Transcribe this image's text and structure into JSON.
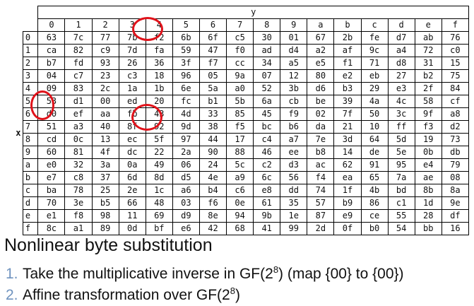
{
  "table": {
    "col_axis_label": "y",
    "row_axis_label": "x",
    "col_headers": [
      "0",
      "1",
      "2",
      "3",
      "4",
      "5",
      "6",
      "7",
      "8",
      "9",
      "a",
      "b",
      "c",
      "d",
      "e",
      "f"
    ],
    "rows": [
      {
        "label": "0",
        "cells": [
          "63",
          "7c",
          "77",
          "7b",
          "f2",
          "6b",
          "6f",
          "c5",
          "30",
          "01",
          "67",
          "2b",
          "fe",
          "d7",
          "ab",
          "76"
        ]
      },
      {
        "label": "1",
        "cells": [
          "ca",
          "82",
          "c9",
          "7d",
          "fa",
          "59",
          "47",
          "f0",
          "ad",
          "d4",
          "a2",
          "af",
          "9c",
          "a4",
          "72",
          "c0"
        ]
      },
      {
        "label": "2",
        "cells": [
          "b7",
          "fd",
          "93",
          "26",
          "36",
          "3f",
          "f7",
          "cc",
          "34",
          "a5",
          "e5",
          "f1",
          "71",
          "d8",
          "31",
          "15"
        ]
      },
      {
        "label": "3",
        "cells": [
          "04",
          "c7",
          "23",
          "c3",
          "18",
          "96",
          "05",
          "9a",
          "07",
          "12",
          "80",
          "e2",
          "eb",
          "27",
          "b2",
          "75"
        ]
      },
      {
        "label": "4",
        "cells": [
          "09",
          "83",
          "2c",
          "1a",
          "1b",
          "6e",
          "5a",
          "a0",
          "52",
          "3b",
          "d6",
          "b3",
          "29",
          "e3",
          "2f",
          "84"
        ]
      },
      {
        "label": "5",
        "cells": [
          "53",
          "d1",
          "00",
          "ed",
          "20",
          "fc",
          "b1",
          "5b",
          "6a",
          "cb",
          "be",
          "39",
          "4a",
          "4c",
          "58",
          "cf"
        ]
      },
      {
        "label": "6",
        "cells": [
          "d0",
          "ef",
          "aa",
          "fb",
          "43",
          "4d",
          "33",
          "85",
          "45",
          "f9",
          "02",
          "7f",
          "50",
          "3c",
          "9f",
          "a8"
        ]
      },
      {
        "label": "7",
        "cells": [
          "51",
          "a3",
          "40",
          "8f",
          "92",
          "9d",
          "38",
          "f5",
          "bc",
          "b6",
          "da",
          "21",
          "10",
          "ff",
          "f3",
          "d2"
        ]
      },
      {
        "label": "8",
        "cells": [
          "cd",
          "0c",
          "13",
          "ec",
          "5f",
          "97",
          "44",
          "17",
          "c4",
          "a7",
          "7e",
          "3d",
          "64",
          "5d",
          "19",
          "73"
        ]
      },
      {
        "label": "9",
        "cells": [
          "60",
          "81",
          "4f",
          "dc",
          "22",
          "2a",
          "90",
          "88",
          "46",
          "ee",
          "b8",
          "14",
          "de",
          "5e",
          "0b",
          "db"
        ]
      },
      {
        "label": "a",
        "cells": [
          "e0",
          "32",
          "3a",
          "0a",
          "49",
          "06",
          "24",
          "5c",
          "c2",
          "d3",
          "ac",
          "62",
          "91",
          "95",
          "e4",
          "79"
        ]
      },
      {
        "label": "b",
        "cells": [
          "e7",
          "c8",
          "37",
          "6d",
          "8d",
          "d5",
          "4e",
          "a9",
          "6c",
          "56",
          "f4",
          "ea",
          "65",
          "7a",
          "ae",
          "08"
        ]
      },
      {
        "label": "c",
        "cells": [
          "ba",
          "78",
          "25",
          "2e",
          "1c",
          "a6",
          "b4",
          "c6",
          "e8",
          "dd",
          "74",
          "1f",
          "4b",
          "bd",
          "8b",
          "8a"
        ]
      },
      {
        "label": "d",
        "cells": [
          "70",
          "3e",
          "b5",
          "66",
          "48",
          "03",
          "f6",
          "0e",
          "61",
          "35",
          "57",
          "b9",
          "86",
          "c1",
          "1d",
          "9e"
        ]
      },
      {
        "label": "e",
        "cells": [
          "e1",
          "f8",
          "98",
          "11",
          "69",
          "d9",
          "8e",
          "94",
          "9b",
          "1e",
          "87",
          "e9",
          "ce",
          "55",
          "28",
          "df"
        ]
      },
      {
        "label": "f",
        "cells": [
          "8c",
          "a1",
          "89",
          "0d",
          "bf",
          "e6",
          "42",
          "68",
          "41",
          "99",
          "2d",
          "0f",
          "b0",
          "54",
          "bb",
          "16"
        ]
      }
    ]
  },
  "highlight_color": "#e0121a",
  "list_number_color": "#6f93bf",
  "heading": "Nonlinear byte substitution",
  "steps": [
    {
      "num": "1.",
      "text_before": "Take the multiplicative inverse in GF(2",
      "sup": "8",
      "text_after": ") (map {00} to {00})"
    },
    {
      "num": "2.",
      "text_before": "Affine transformation over GF(2",
      "sup": "8",
      "text_after": ")"
    }
  ]
}
